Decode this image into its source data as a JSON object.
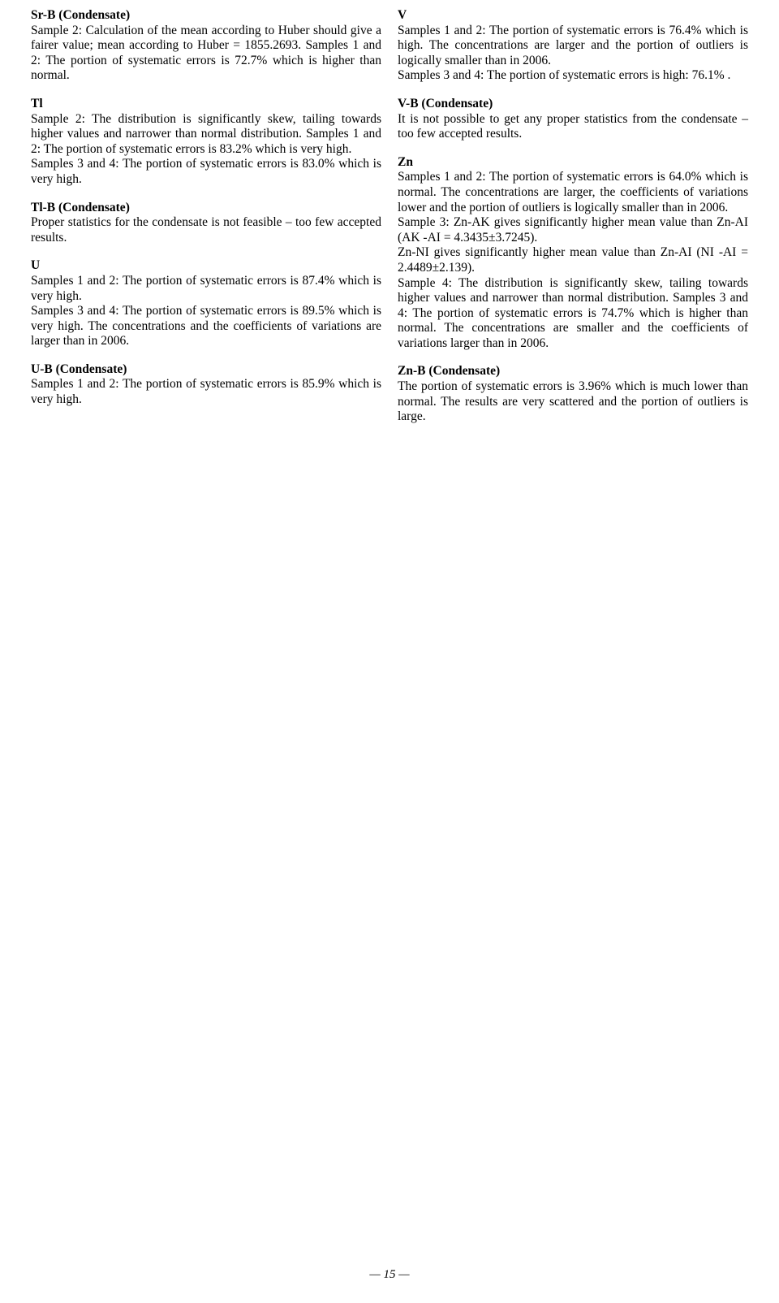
{
  "page_number": "—  15  —",
  "left_column": {
    "sections": [
      {
        "heading": "Sr-B (Condensate)",
        "text": "Sample 2: Calculation of the mean according to Huber should give a fairer value; mean according to Huber = 1855.2693. Samples 1 and 2: The portion of systematic errors is 72.7% which is higher than normal."
      },
      {
        "heading": "Tl",
        "text": "Sample 2: The distribution is significantly skew, tailing towards higher values and narrower than normal distribution. Samples 1 and 2: The portion of systematic errors is 83.2% which is very high.\nSamples 3 and 4: The portion of systematic errors is 83.0% which is very high."
      },
      {
        "heading": "Tl-B (Condensate)",
        "text": "Proper statistics for the condensate is not feasible – too few accepted results."
      },
      {
        "heading": "U",
        "text": "Samples 1 and 2: The portion of systematic errors is 87.4% which is very high.\nSamples 3 and 4: The portion of systematic errors is 89.5% which is very high. The concentrations and the coefficients of variations are larger than in 2006."
      },
      {
        "heading": "U-B (Condensate)",
        "text": "Samples 1 and 2: The portion of systematic errors is 85.9% which is very high."
      }
    ]
  },
  "right_column": {
    "sections": [
      {
        "heading": "V",
        "text": "Samples 1 and 2: The portion of systematic errors is 76.4% which is high. The concentrations are larger and the portion of outliers is logically smaller than in 2006.\nSamples 3 and 4: The portion of systematic errors is high: 76.1% ."
      },
      {
        "heading": "V-B (Condensate)",
        "text": "It is not possible to get any proper statistics from the condensate – too few accepted results."
      },
      {
        "heading": "Zn",
        "text": "Samples 1 and 2: The portion of systematic errors is 64.0% which is normal. The concentrations are larger, the coefficients of variations lower and the portion of outliers is logically smaller than in 2006.\nSample 3: Zn-AK gives significantly higher mean value than Zn-AI (AK -AI = 4.3435±3.7245).\nZn-NI gives significantly higher mean value than Zn-AI (NI -AI = 2.4489±2.139).\nSample 4: The distribution is significantly skew, tailing towards higher values and narrower than normal distribution. Samples 3 and 4: The portion of systematic errors is 74.7% which is higher than normal. The concentrations are smaller and the coefficients of variations larger than in 2006."
      },
      {
        "heading": "Zn-B (Condensate)",
        "text": "The portion of systematic errors is 3.96% which is much lower than normal. The results are very scattered and the portion of outliers is large."
      }
    ]
  },
  "style": {
    "font_family": "Times New Roman",
    "heading_weight": "bold",
    "body_fontsize": 15.5,
    "text_align": "justify",
    "text_color": "#000000",
    "background_color": "#ffffff"
  }
}
